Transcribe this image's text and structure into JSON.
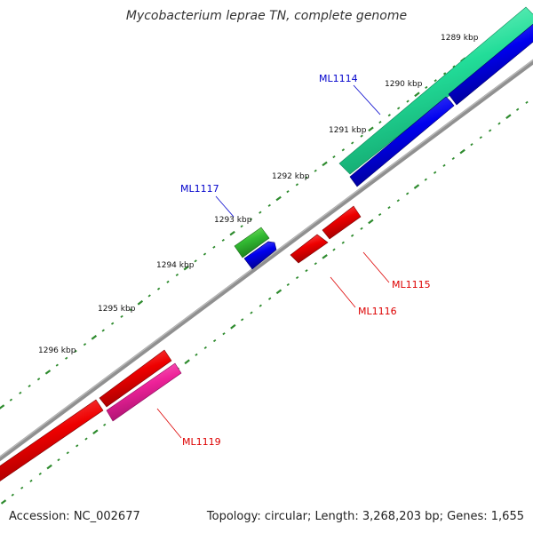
{
  "title": "Mycobacterium leprae TN, complete genome",
  "footer": {
    "accession": "Accession: NC_002677",
    "summary": "Topology: circular; Length: 3,268,203 bp; Genes: 1,655"
  },
  "ticks": [
    "1289 kbp",
    "1290 kbp",
    "1291 kbp",
    "1292 kbp",
    "1293 kbp",
    "1294 kbp",
    "1295 kbp",
    "1296 kbp"
  ],
  "genes": [
    {
      "name": "ML1114",
      "color": "#0000cc"
    },
    {
      "name": "ML1117",
      "color": "#0000cc"
    },
    {
      "name": "ML1115",
      "color": "#dd0000"
    },
    {
      "name": "ML1116",
      "color": "#dd0000"
    },
    {
      "name": "ML1119",
      "color": "#dd0000"
    }
  ],
  "colors": {
    "backbone": "#808080",
    "tick": "#2e8b2e",
    "plus_strand_gene": "#0000ee",
    "minus_strand_gene": "#ee0000",
    "rna_gene": "#22cc88",
    "pseudo_gene": "#33bb33",
    "pink_gene": "#ee2299"
  }
}
